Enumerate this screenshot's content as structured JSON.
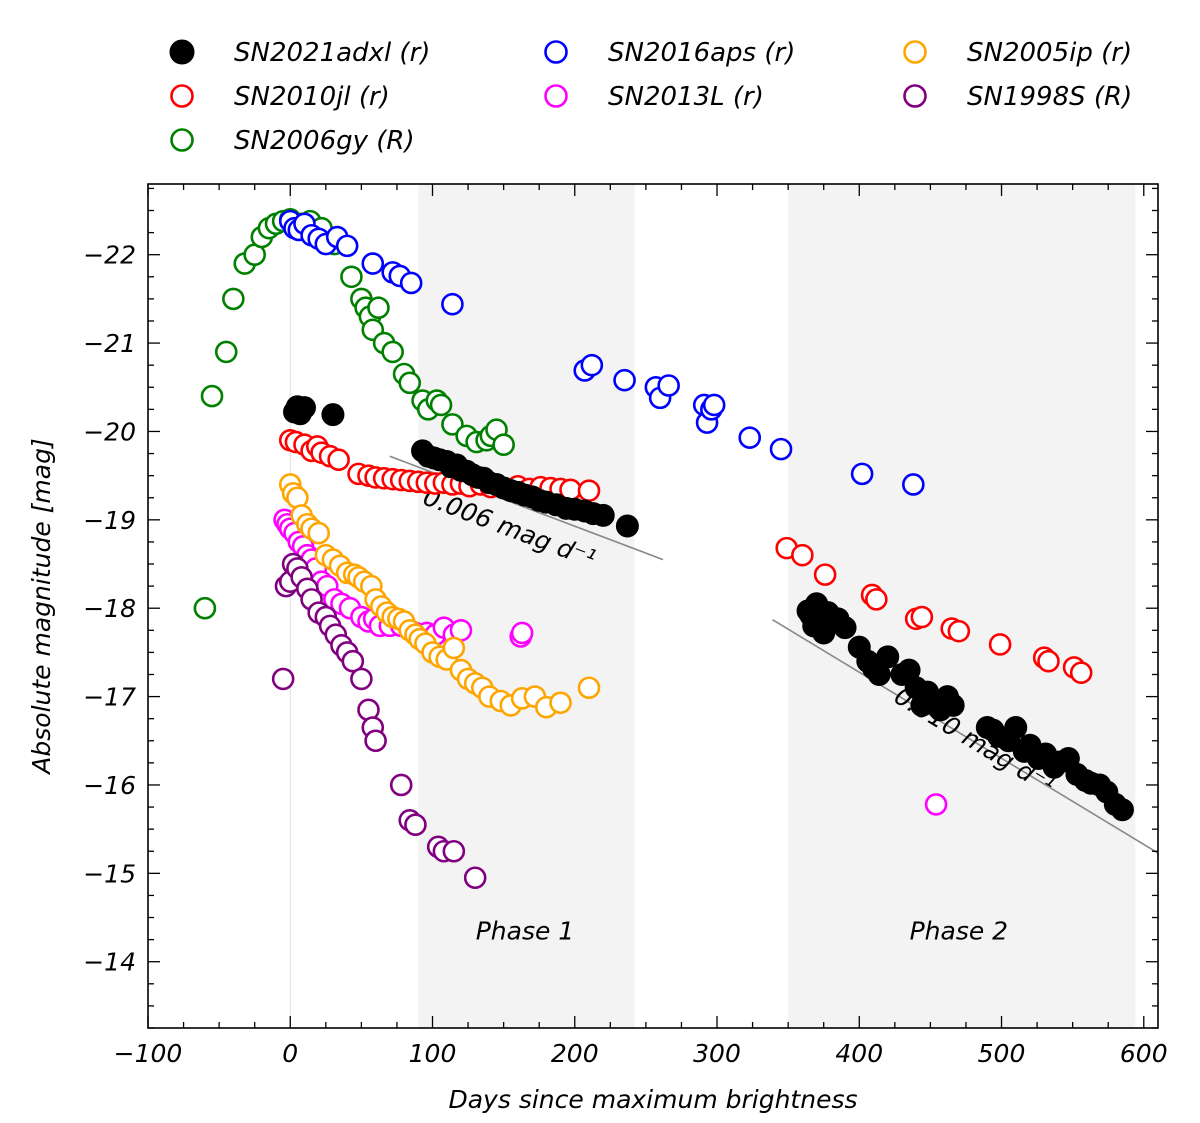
{
  "chart_data": {
    "type": "scatter",
    "xlabel": "Days since maximum brightness",
    "ylabel": "Absolute magnitude [mag]",
    "xlim": [
      -100,
      610
    ],
    "ylim": [
      -13.25,
      -22.8
    ],
    "xticks": [
      -100,
      0,
      100,
      200,
      300,
      400,
      500,
      600
    ],
    "xtick_labels": [
      "−100",
      "0",
      "100",
      "200",
      "300",
      "400",
      "500",
      "600"
    ],
    "yticks": [
      -14,
      -15,
      -16,
      -17,
      -18,
      -19,
      -20,
      -21,
      -22
    ],
    "ytick_labels": [
      "−14",
      "−15",
      "−16",
      "−17",
      "−18",
      "−19",
      "−20",
      "−21",
      "−22"
    ],
    "phases": [
      {
        "label": "Phase 1",
        "x_start": 90,
        "x_end": 242,
        "label_x": 165,
        "label_y": -14.25
      },
      {
        "label": "Phase 2",
        "x_start": 350,
        "x_end": 594,
        "label_x": 470,
        "label_y": -14.25
      }
    ],
    "fit_lines": [
      {
        "label": "0.006 mag d⁻¹",
        "x": [
          70,
          262
        ],
        "y": [
          -19.72,
          -18.55
        ],
        "label_x": 152,
        "label_y": -18.82
      },
      {
        "label": "0.010 mag d⁻¹",
        "x": [
          339,
          610
        ],
        "y": [
          -17.87,
          -15.23
        ],
        "label_x": 478,
        "label_y": -16.42
      }
    ],
    "series": [
      {
        "name": "SN2021adxl (r)",
        "color": "#000000",
        "filled": true,
        "x": [
          5,
          7,
          10,
          3,
          30,
          93,
          97,
          101,
          105,
          110,
          113,
          117,
          120,
          124,
          128,
          132,
          136,
          140,
          145,
          150,
          155,
          160,
          165,
          170,
          175,
          180,
          187,
          194,
          200,
          207,
          213,
          220,
          237,
          364,
          366,
          368,
          370,
          372,
          375,
          378,
          382,
          385,
          390,
          400,
          406,
          410,
          414,
          420,
          430,
          435,
          440,
          444,
          448,
          452,
          457,
          462,
          466,
          490,
          494,
          498,
          505,
          510,
          516,
          520,
          526,
          531,
          537,
          541,
          547,
          553,
          559,
          563,
          569,
          574,
          580,
          585
        ],
        "y": [
          -20.28,
          -20.2,
          -20.27,
          -20.22,
          -20.19,
          -19.78,
          -19.72,
          -19.7,
          -19.68,
          -19.66,
          -19.6,
          -19.62,
          -19.56,
          -19.55,
          -19.51,
          -19.48,
          -19.47,
          -19.42,
          -19.4,
          -19.36,
          -19.33,
          -19.31,
          -19.28,
          -19.26,
          -19.22,
          -19.2,
          -19.17,
          -19.13,
          -19.12,
          -19.1,
          -19.07,
          -19.05,
          -18.93,
          -17.97,
          -17.92,
          -17.8,
          -18.05,
          -17.83,
          -17.72,
          -17.95,
          -17.86,
          -17.88,
          -17.78,
          -17.56,
          -17.4,
          -17.32,
          -17.25,
          -17.45,
          -17.25,
          -17.3,
          -17.1,
          -16.9,
          -17.05,
          -16.95,
          -16.85,
          -17.0,
          -16.9,
          -16.65,
          -16.62,
          -16.55,
          -16.5,
          -16.65,
          -16.38,
          -16.45,
          -16.3,
          -16.35,
          -16.2,
          -16.26,
          -16.3,
          -16.12,
          -16.05,
          -16.02,
          -16.0,
          -15.92,
          -15.78,
          -15.72
        ]
      },
      {
        "name": "SN2010jl (r)",
        "color": "#ff0000",
        "filled": false,
        "x": [
          0,
          4,
          10,
          15,
          19,
          22,
          28,
          34,
          48,
          55,
          60,
          66,
          72,
          78,
          84,
          90,
          96,
          102,
          108,
          114,
          120,
          126,
          134,
          141,
          150,
          160,
          168,
          176,
          183,
          190,
          197,
          210,
          349,
          360,
          376,
          409,
          412,
          440,
          444,
          465,
          470,
          499,
          530,
          533,
          551,
          556
        ],
        "y": [
          -19.9,
          -19.88,
          -19.85,
          -19.78,
          -19.83,
          -19.76,
          -19.72,
          -19.68,
          -19.52,
          -19.5,
          -19.48,
          -19.47,
          -19.46,
          -19.45,
          -19.44,
          -19.43,
          -19.42,
          -19.41,
          -19.42,
          -19.4,
          -19.41,
          -19.38,
          -19.4,
          -19.37,
          -19.36,
          -19.38,
          -19.35,
          -19.37,
          -19.36,
          -19.35,
          -19.34,
          -19.33,
          -18.68,
          -18.6,
          -18.38,
          -18.15,
          -18.1,
          -17.88,
          -17.9,
          -17.77,
          -17.74,
          -17.59,
          -17.44,
          -17.4,
          -17.33,
          -17.27
        ]
      },
      {
        "name": "SN2006gy (R)",
        "color": "#008000",
        "filled": false,
        "x": [
          -60,
          -55,
          -45,
          -40,
          -32,
          -25,
          -20,
          -15,
          -10,
          -5,
          0,
          8,
          14,
          22,
          31,
          43,
          50,
          53,
          56,
          58,
          62,
          66,
          72,
          80,
          84,
          93,
          97,
          103,
          106,
          114,
          124,
          131,
          138,
          141,
          145,
          150
        ],
        "y": [
          -18.0,
          -20.4,
          -20.9,
          -21.5,
          -21.9,
          -22.0,
          -22.2,
          -22.3,
          -22.35,
          -22.38,
          -22.4,
          -22.35,
          -22.38,
          -22.3,
          -22.12,
          -21.75,
          -21.5,
          -21.4,
          -21.3,
          -21.15,
          -21.4,
          -21.0,
          -20.9,
          -20.65,
          -20.55,
          -20.35,
          -20.25,
          -20.35,
          -20.3,
          -20.08,
          -19.95,
          -19.88,
          -19.9,
          -19.95,
          -20.02,
          -19.85
        ]
      },
      {
        "name": "SN2016aps (r)",
        "color": "#0000ff",
        "filled": false,
        "x": [
          0,
          3,
          6,
          10,
          15,
          20,
          25,
          33,
          40,
          58,
          72,
          77,
          85,
          114,
          207,
          212,
          235,
          257,
          260,
          266,
          291,
          293,
          296,
          298,
          323,
          345,
          402,
          438
        ],
        "y": [
          -22.38,
          -22.3,
          -22.28,
          -22.35,
          -22.22,
          -22.18,
          -22.12,
          -22.2,
          -22.1,
          -21.9,
          -21.8,
          -21.76,
          -21.68,
          -21.44,
          -20.69,
          -20.75,
          -20.58,
          -20.5,
          -20.38,
          -20.52,
          -20.3,
          -20.1,
          -20.25,
          -20.3,
          -19.93,
          -19.8,
          -19.52,
          -19.4
        ]
      },
      {
        "name": "SN2013L (r)",
        "color": "#ff00ff",
        "filled": false,
        "x": [
          -4,
          -2,
          0,
          3,
          6,
          9,
          12,
          15,
          18,
          22,
          26,
          31,
          36,
          42,
          50,
          55,
          59,
          63,
          70,
          78,
          84,
          88,
          92,
          96,
          102,
          108,
          115,
          120,
          162,
          163,
          454
        ],
        "y": [
          -19.0,
          -18.95,
          -18.9,
          -18.85,
          -18.75,
          -18.7,
          -18.6,
          -18.55,
          -18.45,
          -18.3,
          -18.25,
          -18.1,
          -18.05,
          -18.0,
          -17.9,
          -17.85,
          -17.88,
          -17.8,
          -17.8,
          -17.8,
          -17.75,
          -17.72,
          -17.7,
          -17.72,
          -17.7,
          -17.78,
          -17.7,
          -17.75,
          -17.68,
          -17.72,
          -15.78
        ]
      },
      {
        "name": "SN2005ip (r)",
        "color": "#ffa500",
        "filled": false,
        "x": [
          0,
          2,
          5,
          8,
          12,
          15,
          20,
          25,
          30,
          35,
          40,
          45,
          48,
          52,
          57,
          60,
          64,
          68,
          72,
          76,
          80,
          84,
          88,
          91,
          95,
          100,
          105,
          110,
          115,
          120,
          125,
          130,
          135,
          140,
          148,
          155,
          163,
          172,
          180,
          190,
          210
        ],
        "y": [
          -19.4,
          -19.3,
          -19.25,
          -19.05,
          -18.95,
          -18.9,
          -18.85,
          -18.6,
          -18.55,
          -18.48,
          -18.4,
          -18.38,
          -18.35,
          -18.3,
          -18.25,
          -18.1,
          -18.02,
          -17.95,
          -17.9,
          -17.88,
          -17.85,
          -17.75,
          -17.7,
          -17.65,
          -17.6,
          -17.5,
          -17.45,
          -17.42,
          -17.55,
          -17.3,
          -17.2,
          -17.15,
          -17.1,
          -17.0,
          -16.95,
          -16.9,
          -16.98,
          -17.0,
          -16.88,
          -16.93,
          -17.1
        ]
      },
      {
        "name": "SN1998S (R)",
        "color": "#800080",
        "filled": false,
        "x": [
          -5,
          -3,
          0,
          2,
          5,
          8,
          12,
          15,
          20,
          25,
          28,
          32,
          36,
          40,
          44,
          50,
          55,
          58,
          60,
          78,
          84,
          88,
          104,
          108,
          115,
          130
        ],
        "y": [
          -17.2,
          -18.25,
          -18.3,
          -18.5,
          -18.45,
          -18.35,
          -18.22,
          -18.1,
          -17.95,
          -17.9,
          -17.8,
          -17.7,
          -17.58,
          -17.5,
          -17.4,
          -17.2,
          -16.85,
          -16.65,
          -16.5,
          -16.0,
          -15.6,
          -15.55,
          -15.3,
          -15.25,
          -15.25,
          -14.95
        ]
      }
    ]
  }
}
